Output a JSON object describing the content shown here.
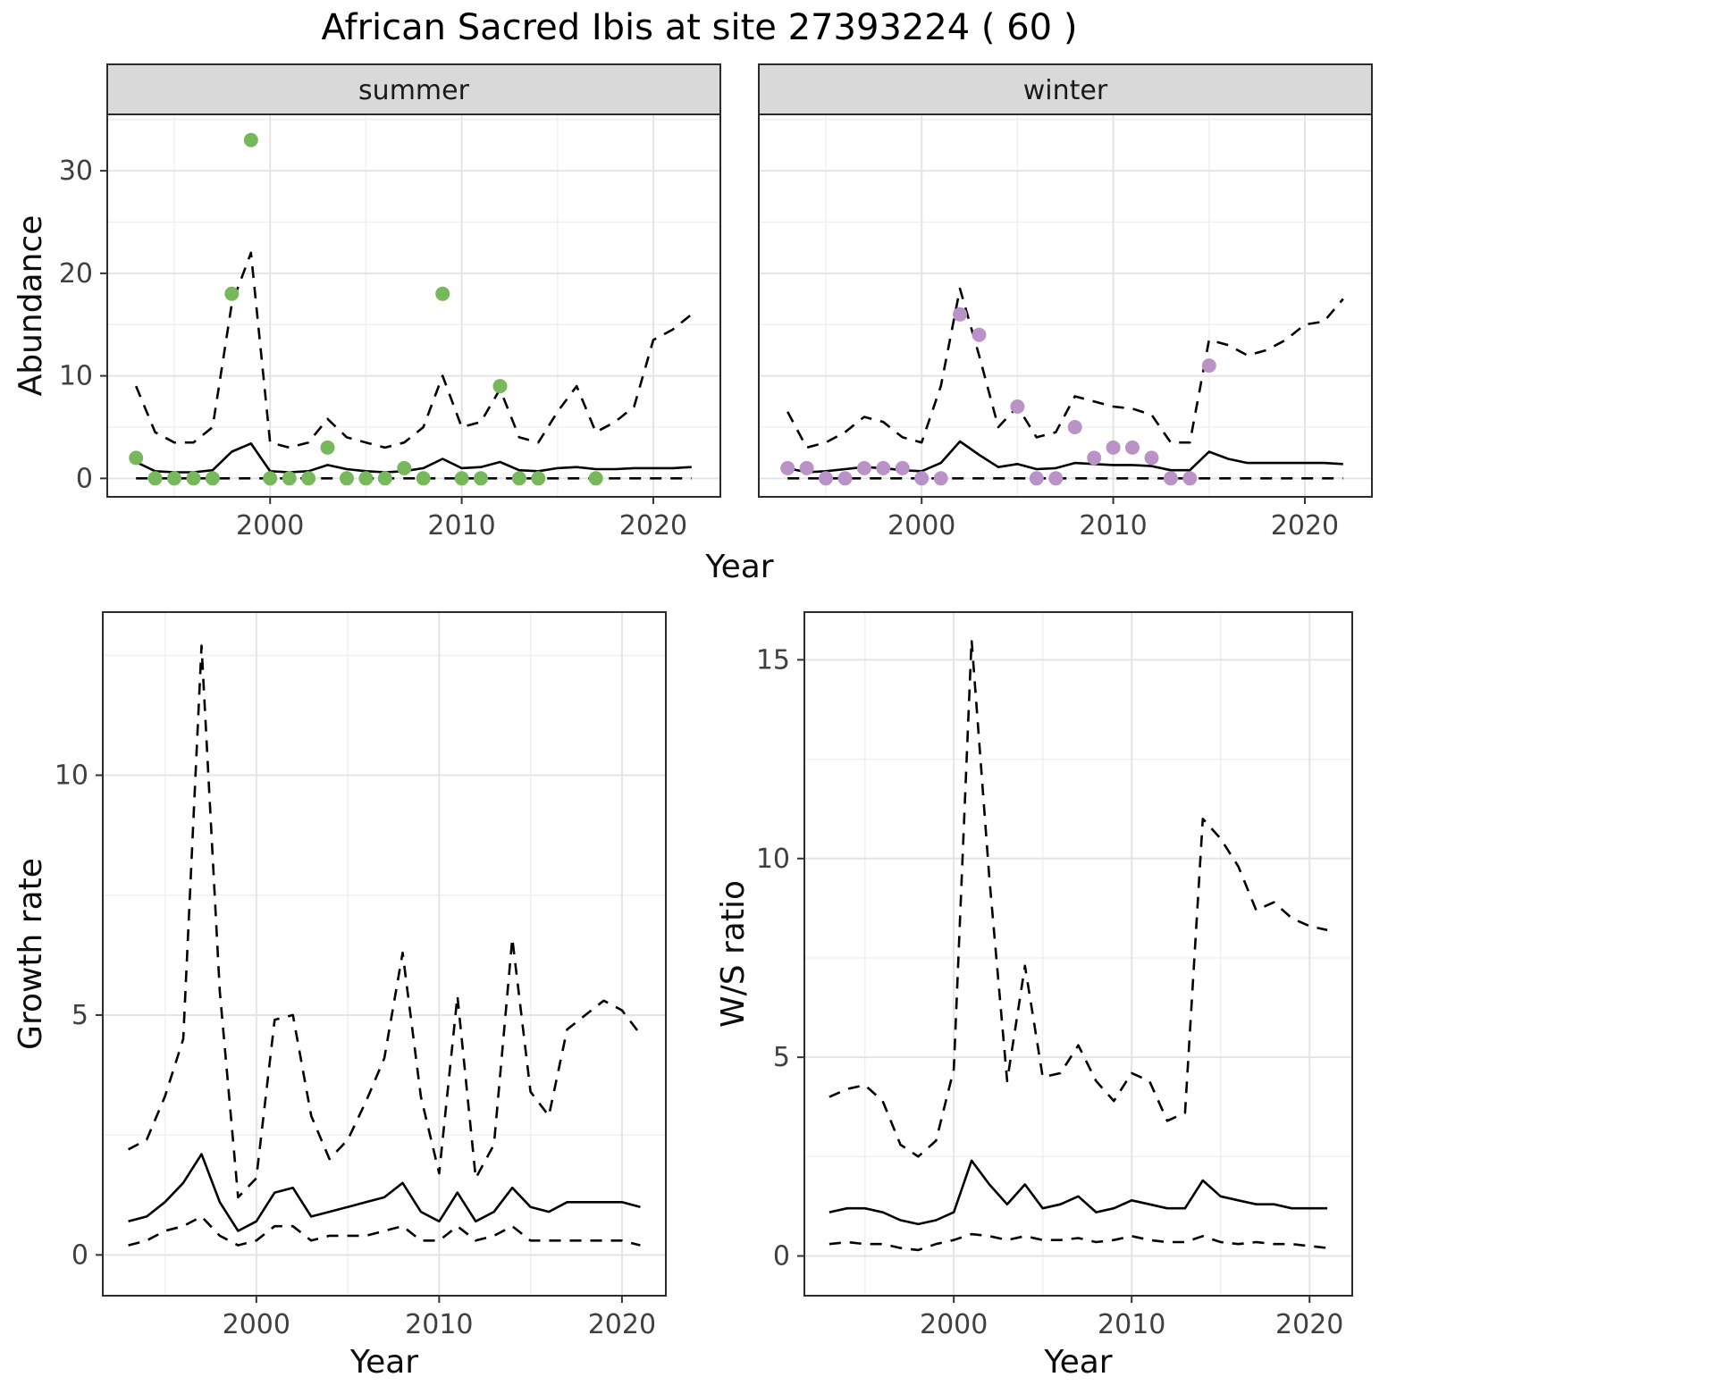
{
  "title": "African Sacred Ibis at site 27393224 ( 60 )",
  "colors": {
    "summer_point": "#78b85c",
    "winter_point": "#b993c8",
    "line": "#000000",
    "strip_bg": "#d9d9d9",
    "panel_bg": "#ffffff",
    "grid_major": "#e4e4e4",
    "grid_minor": "#f0f0f0",
    "panel_border": "#2b2b2b",
    "axis_text": "#404040",
    "axis_title": "#0d0d0d",
    "tick_mark": "#333333"
  },
  "chart_data": [
    {
      "type": "line",
      "id": "abundance-summer",
      "facet_label": "summer",
      "xlabel": "Year",
      "ylabel": "Abundance",
      "xlim": [
        1991.5,
        2023.5
      ],
      "ylim": [
        -1.8,
        35.5
      ],
      "x_ticks": [
        2000,
        2010,
        2020
      ],
      "x_minor": [
        1995,
        2005,
        2015
      ],
      "y_ticks": [
        0,
        10,
        20,
        30
      ],
      "y_minor": [
        5,
        15,
        25,
        35
      ],
      "x": [
        1993,
        1994,
        1995,
        1996,
        1997,
        1998,
        1999,
        2000,
        2001,
        2002,
        2003,
        2004,
        2005,
        2006,
        2007,
        2008,
        2009,
        2010,
        2011,
        2012,
        2013,
        2014,
        2015,
        2016,
        2017,
        2018,
        2019,
        2020,
        2021,
        2022
      ],
      "series": [
        {
          "name": "upper_ci",
          "style": "dashed",
          "values": [
            9,
            4.5,
            3.5,
            3.5,
            5,
            17,
            22,
            3.5,
            3,
            3.5,
            5.8,
            4,
            3.5,
            3,
            3.5,
            5,
            10,
            5,
            5.5,
            8.7,
            4,
            3.5,
            6.5,
            9,
            4.5,
            5.5,
            7,
            13.5,
            14.5,
            16
          ]
        },
        {
          "name": "median",
          "style": "solid",
          "values": [
            1.6,
            0.7,
            0.6,
            0.6,
            0.8,
            2.6,
            3.4,
            0.7,
            0.6,
            0.7,
            1.3,
            0.9,
            0.7,
            0.6,
            0.7,
            1.0,
            1.9,
            1.0,
            1.1,
            1.6,
            0.8,
            0.7,
            1.0,
            1.1,
            0.9,
            0.9,
            1.0,
            1.0,
            1.0,
            1.1
          ]
        },
        {
          "name": "lower_ci",
          "style": "dashed",
          "values": [
            0,
            0,
            0,
            0,
            0,
            0,
            0,
            0,
            0,
            0,
            0,
            0,
            0,
            0,
            0,
            0,
            0,
            0,
            0,
            0,
            0,
            0,
            0,
            0,
            0,
            0,
            0,
            0,
            0,
            0
          ]
        }
      ],
      "points": {
        "name": "observed-counts",
        "color_key": "summer_point",
        "x": [
          1993,
          1994,
          1995,
          1996,
          1997,
          1998,
          1999,
          2000,
          2001,
          2002,
          2003,
          2004,
          2005,
          2006,
          2007,
          2008,
          2009,
          2010,
          2011,
          2012,
          2013,
          2014,
          2017
        ],
        "y": [
          2,
          0,
          0,
          0,
          0,
          18,
          33,
          0,
          0,
          0,
          3,
          0,
          0,
          0,
          1,
          0,
          18,
          0,
          0,
          9,
          0,
          0,
          0
        ]
      }
    },
    {
      "type": "line",
      "id": "abundance-winter",
      "facet_label": "winter",
      "xlabel": "Year",
      "ylabel": "Abundance",
      "xlim": [
        1991.5,
        2023.5
      ],
      "ylim": [
        -1.8,
        35.5
      ],
      "x_ticks": [
        2000,
        2010,
        2020
      ],
      "x_minor": [
        1995,
        2005,
        2015
      ],
      "y_ticks": [
        0,
        10,
        20,
        30
      ],
      "y_minor": [
        5,
        15,
        25,
        35
      ],
      "x": [
        1993,
        1994,
        1995,
        1996,
        1997,
        1998,
        1999,
        2000,
        2001,
        2002,
        2003,
        2004,
        2005,
        2006,
        2007,
        2008,
        2009,
        2010,
        2011,
        2012,
        2013,
        2014,
        2015,
        2016,
        2017,
        2018,
        2019,
        2020,
        2021,
        2022
      ],
      "series": [
        {
          "name": "upper_ci",
          "style": "dashed",
          "values": [
            6.5,
            3,
            3.5,
            4.5,
            6,
            5.5,
            4,
            3.5,
            9,
            18.5,
            12,
            5,
            7,
            4,
            4.5,
            8,
            7.5,
            7,
            6.8,
            6.2,
            3.5,
            3.5,
            13.5,
            13,
            12,
            12.5,
            13.5,
            15,
            15.3,
            17.5
          ]
        },
        {
          "name": "median",
          "style": "solid",
          "values": [
            1.0,
            0.6,
            0.7,
            0.9,
            1.1,
            1.0,
            0.8,
            0.7,
            1.5,
            3.6,
            2.3,
            1.1,
            1.4,
            0.9,
            1.0,
            1.5,
            1.4,
            1.3,
            1.3,
            1.2,
            0.8,
            0.8,
            2.6,
            1.9,
            1.5,
            1.5,
            1.5,
            1.5,
            1.5,
            1.4
          ]
        },
        {
          "name": "lower_ci",
          "style": "dashed",
          "values": [
            0,
            0,
            0,
            0,
            0,
            0,
            0,
            0,
            0,
            0,
            0,
            0,
            0,
            0,
            0,
            0,
            0,
            0,
            0,
            0,
            0,
            0,
            0,
            0,
            0,
            0,
            0,
            0,
            0,
            0
          ]
        }
      ],
      "points": {
        "name": "observed-counts",
        "color_key": "winter_point",
        "x": [
          1993,
          1994,
          1995,
          1996,
          1997,
          1998,
          1999,
          2000,
          2001,
          2002,
          2003,
          2005,
          2006,
          2007,
          2008,
          2009,
          2010,
          2011,
          2012,
          2013,
          2014,
          2015
        ],
        "y": [
          1,
          1,
          0,
          0,
          1,
          1,
          1,
          0,
          0,
          16,
          14,
          7,
          0,
          0,
          5,
          2,
          3,
          3,
          2,
          0,
          0,
          11
        ]
      }
    },
    {
      "type": "line",
      "id": "growth-rate",
      "facet_label": "",
      "xlabel": "Year",
      "ylabel": "Growth rate",
      "xlim": [
        1991.6,
        2022.4
      ],
      "ylim": [
        -0.85,
        13.4
      ],
      "x_ticks": [
        2000,
        2010,
        2020
      ],
      "x_minor": [
        1995,
        2005,
        2015
      ],
      "y_ticks": [
        0,
        5,
        10
      ],
      "y_minor": [
        2.5,
        7.5,
        12.5
      ],
      "x": [
        1993,
        1994,
        1995,
        1996,
        1997,
        1998,
        1999,
        2000,
        2001,
        2002,
        2003,
        2004,
        2005,
        2006,
        2007,
        2008,
        2009,
        2010,
        2011,
        2012,
        2013,
        2014,
        2015,
        2016,
        2017,
        2018,
        2019,
        2020,
        2021
      ],
      "series": [
        {
          "name": "upper_ci",
          "style": "dashed",
          "values": [
            2.2,
            2.4,
            3.3,
            4.5,
            12.7,
            5.5,
            1.2,
            1.6,
            4.9,
            5.0,
            2.9,
            2.0,
            2.4,
            3.2,
            4.1,
            6.3,
            3.3,
            1.7,
            5.4,
            1.6,
            2.3,
            6.6,
            3.4,
            2.9,
            4.7,
            5.0,
            5.3,
            5.1,
            4.6
          ]
        },
        {
          "name": "median",
          "style": "solid",
          "values": [
            0.7,
            0.8,
            1.1,
            1.5,
            2.1,
            1.1,
            0.5,
            0.7,
            1.3,
            1.4,
            0.8,
            0.9,
            1.0,
            1.1,
            1.2,
            1.5,
            0.9,
            0.7,
            1.3,
            0.7,
            0.9,
            1.4,
            1.0,
            0.9,
            1.1,
            1.1,
            1.1,
            1.1,
            1.0
          ]
        },
        {
          "name": "lower_ci",
          "style": "dashed",
          "values": [
            0.2,
            0.3,
            0.5,
            0.6,
            0.8,
            0.4,
            0.2,
            0.3,
            0.6,
            0.6,
            0.3,
            0.4,
            0.4,
            0.4,
            0.5,
            0.6,
            0.3,
            0.3,
            0.6,
            0.3,
            0.4,
            0.6,
            0.3,
            0.3,
            0.3,
            0.3,
            0.3,
            0.3,
            0.2
          ]
        }
      ],
      "points": null
    },
    {
      "type": "line",
      "id": "ws-ratio",
      "facet_label": "",
      "xlabel": "Year",
      "ylabel": "W/S ratio",
      "xlim": [
        1991.6,
        2022.4
      ],
      "ylim": [
        -1.0,
        16.2
      ],
      "x_ticks": [
        2000,
        2010,
        2020
      ],
      "x_minor": [
        1995,
        2005,
        2015
      ],
      "y_ticks": [
        0,
        5,
        10,
        15
      ],
      "y_minor": [
        2.5,
        7.5,
        12.5
      ],
      "x": [
        1993,
        1994,
        1995,
        1996,
        1997,
        1998,
        1999,
        2000,
        2001,
        2002,
        2003,
        2004,
        2005,
        2006,
        2007,
        2008,
        2009,
        2010,
        2011,
        2012,
        2013,
        2014,
        2015,
        2016,
        2017,
        2018,
        2019,
        2020,
        2021
      ],
      "series": [
        {
          "name": "upper_ci",
          "style": "dashed",
          "values": [
            4.0,
            4.2,
            4.3,
            3.9,
            2.8,
            2.5,
            2.9,
            4.7,
            15.5,
            9.5,
            4.4,
            7.3,
            4.5,
            4.6,
            5.3,
            4.4,
            3.9,
            4.6,
            4.4,
            3.4,
            3.6,
            11.0,
            10.5,
            9.8,
            8.7,
            8.9,
            8.5,
            8.3,
            8.2
          ]
        },
        {
          "name": "median",
          "style": "solid",
          "values": [
            1.1,
            1.2,
            1.2,
            1.1,
            0.9,
            0.8,
            0.9,
            1.1,
            2.4,
            1.8,
            1.3,
            1.8,
            1.2,
            1.3,
            1.5,
            1.1,
            1.2,
            1.4,
            1.3,
            1.2,
            1.2,
            1.9,
            1.5,
            1.4,
            1.3,
            1.3,
            1.2,
            1.2,
            1.2
          ]
        },
        {
          "name": "lower_ci",
          "style": "dashed",
          "values": [
            0.3,
            0.35,
            0.3,
            0.3,
            0.2,
            0.15,
            0.3,
            0.4,
            0.55,
            0.5,
            0.4,
            0.5,
            0.4,
            0.4,
            0.45,
            0.35,
            0.4,
            0.5,
            0.4,
            0.35,
            0.35,
            0.5,
            0.35,
            0.3,
            0.35,
            0.3,
            0.3,
            0.25,
            0.2
          ]
        }
      ],
      "points": null
    }
  ]
}
